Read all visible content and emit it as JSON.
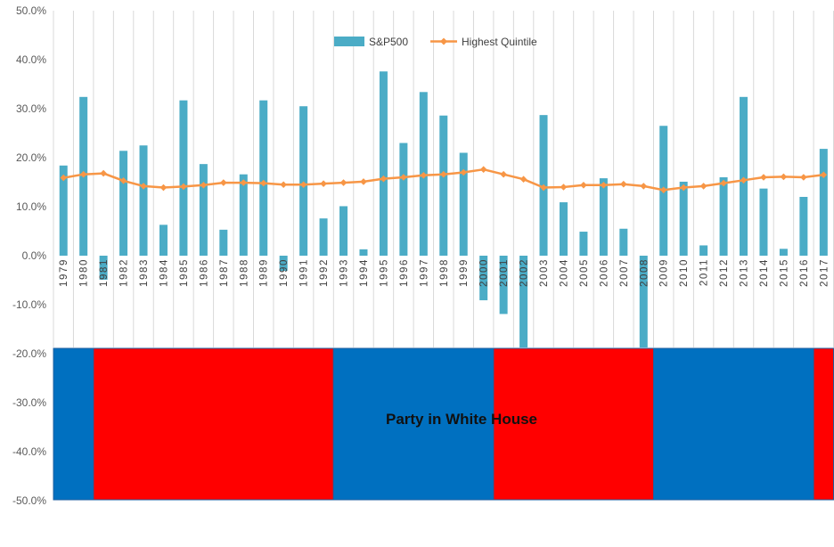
{
  "chart_data": {
    "type": "bar",
    "categories": [
      "1979",
      "1980",
      "1981",
      "1982",
      "1983",
      "1984",
      "1985",
      "1986",
      "1987",
      "1988",
      "1989",
      "1990",
      "1991",
      "1992",
      "1993",
      "1994",
      "1995",
      "1996",
      "1997",
      "1998",
      "1999",
      "2000",
      "2001",
      "2002",
      "2003",
      "2004",
      "2005",
      "2006",
      "2007",
      "2008",
      "2009",
      "2010",
      "2011",
      "2012",
      "2013",
      "2014",
      "2015",
      "2016",
      "2017"
    ],
    "series": [
      {
        "name": "S&P500",
        "kind": "bar",
        "color": "#4BACC6",
        "values": [
          18.4,
          32.4,
          -4.9,
          21.4,
          22.5,
          6.3,
          31.7,
          18.7,
          5.3,
          16.6,
          31.7,
          -3.1,
          30.5,
          7.6,
          10.1,
          1.3,
          37.6,
          23.0,
          33.4,
          28.6,
          21.0,
          -9.1,
          -11.9,
          -22.1,
          28.7,
          10.9,
          4.9,
          15.8,
          5.5,
          -37.0,
          26.5,
          15.1,
          2.1,
          16.0,
          32.4,
          13.7,
          1.4,
          12.0,
          21.8
        ]
      },
      {
        "name": "Highest Quintile",
        "kind": "line",
        "color": "#F79646",
        "values": [
          15.9,
          16.6,
          16.8,
          15.3,
          14.2,
          13.9,
          14.1,
          14.4,
          14.9,
          14.9,
          14.8,
          14.5,
          14.5,
          14.7,
          14.9,
          15.1,
          15.7,
          16.0,
          16.4,
          16.6,
          17.0,
          17.6,
          16.6,
          15.6,
          13.9,
          14.0,
          14.4,
          14.4,
          14.6,
          14.2,
          13.4,
          13.9,
          14.2,
          14.8,
          15.4,
          16.0,
          16.1,
          16.0,
          16.5
        ]
      }
    ],
    "y_ticks": [
      "50.0%",
      "40.0%",
      "30.0%",
      "20.0%",
      "10.0%",
      "0.0%",
      "-10.0%",
      "-20.0%",
      "-30.0%",
      "-40.0%",
      "-50.0%"
    ],
    "ylim": [
      -50,
      50
    ],
    "grid": "vertical",
    "legend_position": "top-center",
    "annotation": "Party in White House",
    "party_bands": [
      {
        "party": "Democratic",
        "color": "#0070C0",
        "from": "1979",
        "to": "1980"
      },
      {
        "party": "Republican",
        "color": "#FF0000",
        "from": "1981",
        "to": "1992"
      },
      {
        "party": "Democratic",
        "color": "#0070C0",
        "from": "1993",
        "to": "2000"
      },
      {
        "party": "Republican",
        "color": "#FF0000",
        "from": "2001",
        "to": "2008"
      },
      {
        "party": "Democratic",
        "color": "#0070C0",
        "from": "2009",
        "to": "2016"
      },
      {
        "party": "Republican",
        "color": "#FF0000",
        "from": "2017",
        "to": "2017"
      }
    ]
  }
}
